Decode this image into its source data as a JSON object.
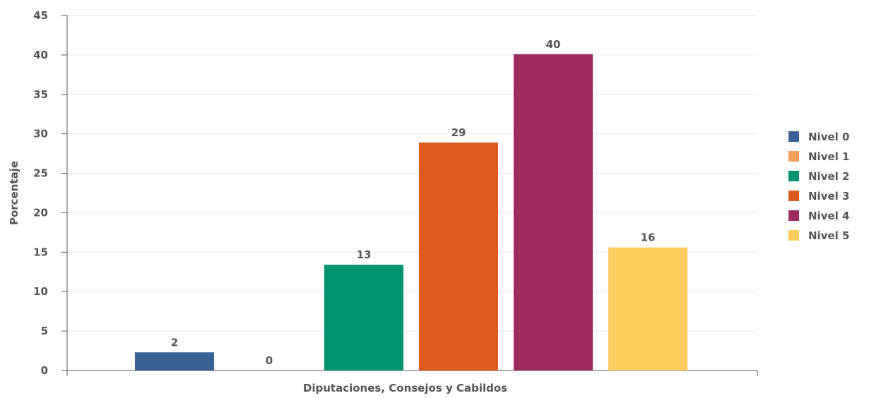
{
  "chart_data": {
    "type": "bar",
    "title": "",
    "xlabel": "Diputaciones, Consejos y Cabildos",
    "ylabel": "Porcentaje",
    "ylim": [
      0,
      45
    ],
    "yticks": [
      0,
      5,
      10,
      15,
      20,
      25,
      30,
      35,
      40,
      45
    ],
    "grid": true,
    "legend_position": "right",
    "categories": [
      "Diputaciones, Consejos y Cabildos"
    ],
    "series": [
      {
        "name": "Nivel 0",
        "values": [
          2.3
        ],
        "label": "2",
        "color": "#3a6195"
      },
      {
        "name": "Nivel 1",
        "values": [
          0
        ],
        "label": "0",
        "color": "#f0a05a"
      },
      {
        "name": "Nivel 2",
        "values": [
          13.4
        ],
        "label": "13",
        "color": "#009371"
      },
      {
        "name": "Nivel 3",
        "values": [
          28.9
        ],
        "label": "29",
        "color": "#dc5a1e"
      },
      {
        "name": "Nivel 4",
        "values": [
          40.1
        ],
        "label": "40",
        "color": "#9e2b5f"
      },
      {
        "name": "Nivel 5",
        "values": [
          15.6
        ],
        "label": "16",
        "color": "#fecc5c"
      }
    ]
  }
}
